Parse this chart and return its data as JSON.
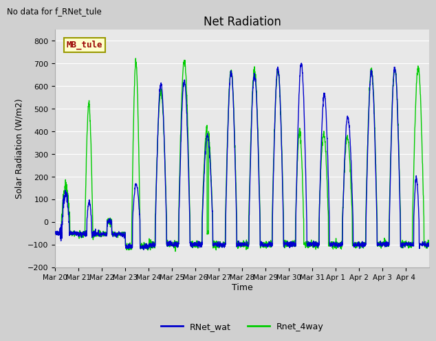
{
  "title": "Net Radiation",
  "xlabel": "Time",
  "ylabel": "Solar Radiation (W/m2)",
  "no_data_text": "No data for f_RNet_tule",
  "legend_label_box": "MB_tule",
  "legend_entries": [
    "RNet_wat",
    "Rnet_4way"
  ],
  "legend_colors": [
    "#0000cc",
    "#00cc00"
  ],
  "ylim": [
    -200,
    850
  ],
  "yticks": [
    -200,
    -100,
    0,
    100,
    200,
    300,
    400,
    500,
    600,
    700,
    800
  ],
  "xtick_labels": [
    "Mar 20",
    "Mar 21",
    "Mar 22",
    "Mar 23",
    "Mar 24",
    "Mar 25",
    "Mar 26",
    "Mar 27",
    "Mar 28",
    "Mar 29",
    "Mar 30",
    "Mar 31",
    "Apr 1",
    "Apr 2",
    "Apr 3",
    "Apr 4"
  ],
  "fig_facecolor": "#d0d0d0",
  "axes_facecolor": "#e8e8e8",
  "grid_color": "#ffffff",
  "blue_color": "#0000cc",
  "green_color": "#00cc00",
  "n_days": 16,
  "pts_per_day": 144
}
